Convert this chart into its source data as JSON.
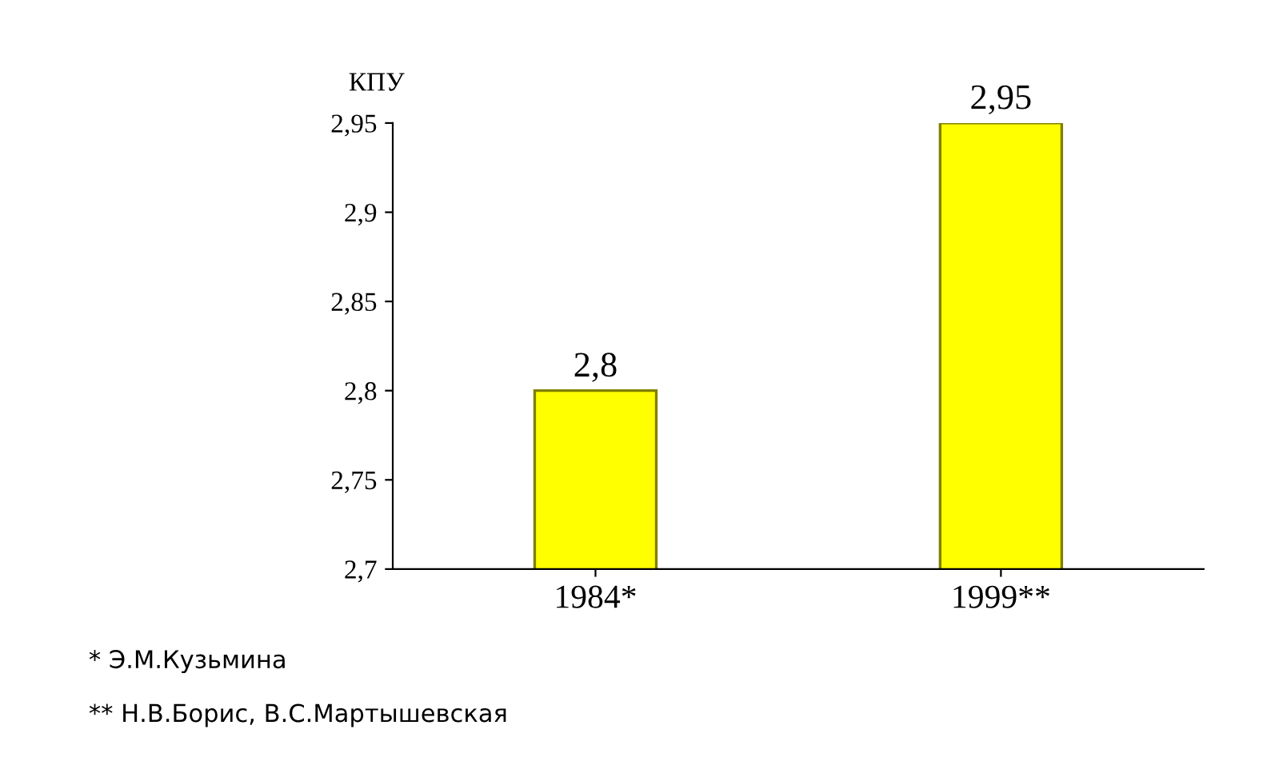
{
  "chart_data": {
    "type": "bar",
    "ylabel": "КПУ",
    "categories": [
      "1984*",
      "1999**"
    ],
    "values": [
      2.8,
      2.95
    ],
    "color": "#ffff00",
    "ylim": [
      2.7,
      2.95
    ],
    "yticks": [
      {
        "value": 2.7,
        "label": "2,7"
      },
      {
        "value": 2.75,
        "label": "2,75"
      },
      {
        "value": 2.8,
        "label": "2,8"
      },
      {
        "value": 2.85,
        "label": "2,85"
      },
      {
        "value": 2.9,
        "label": "2,9"
      },
      {
        "value": 2.95,
        "label": "2,95"
      }
    ],
    "value_labels": [
      "2,8",
      "2,95"
    ],
    "grid": false,
    "legend": false,
    "annotations": [
      "* Э.М.Кузьмина",
      "** Н.В.Борис, В.С.Мартышевская"
    ]
  }
}
